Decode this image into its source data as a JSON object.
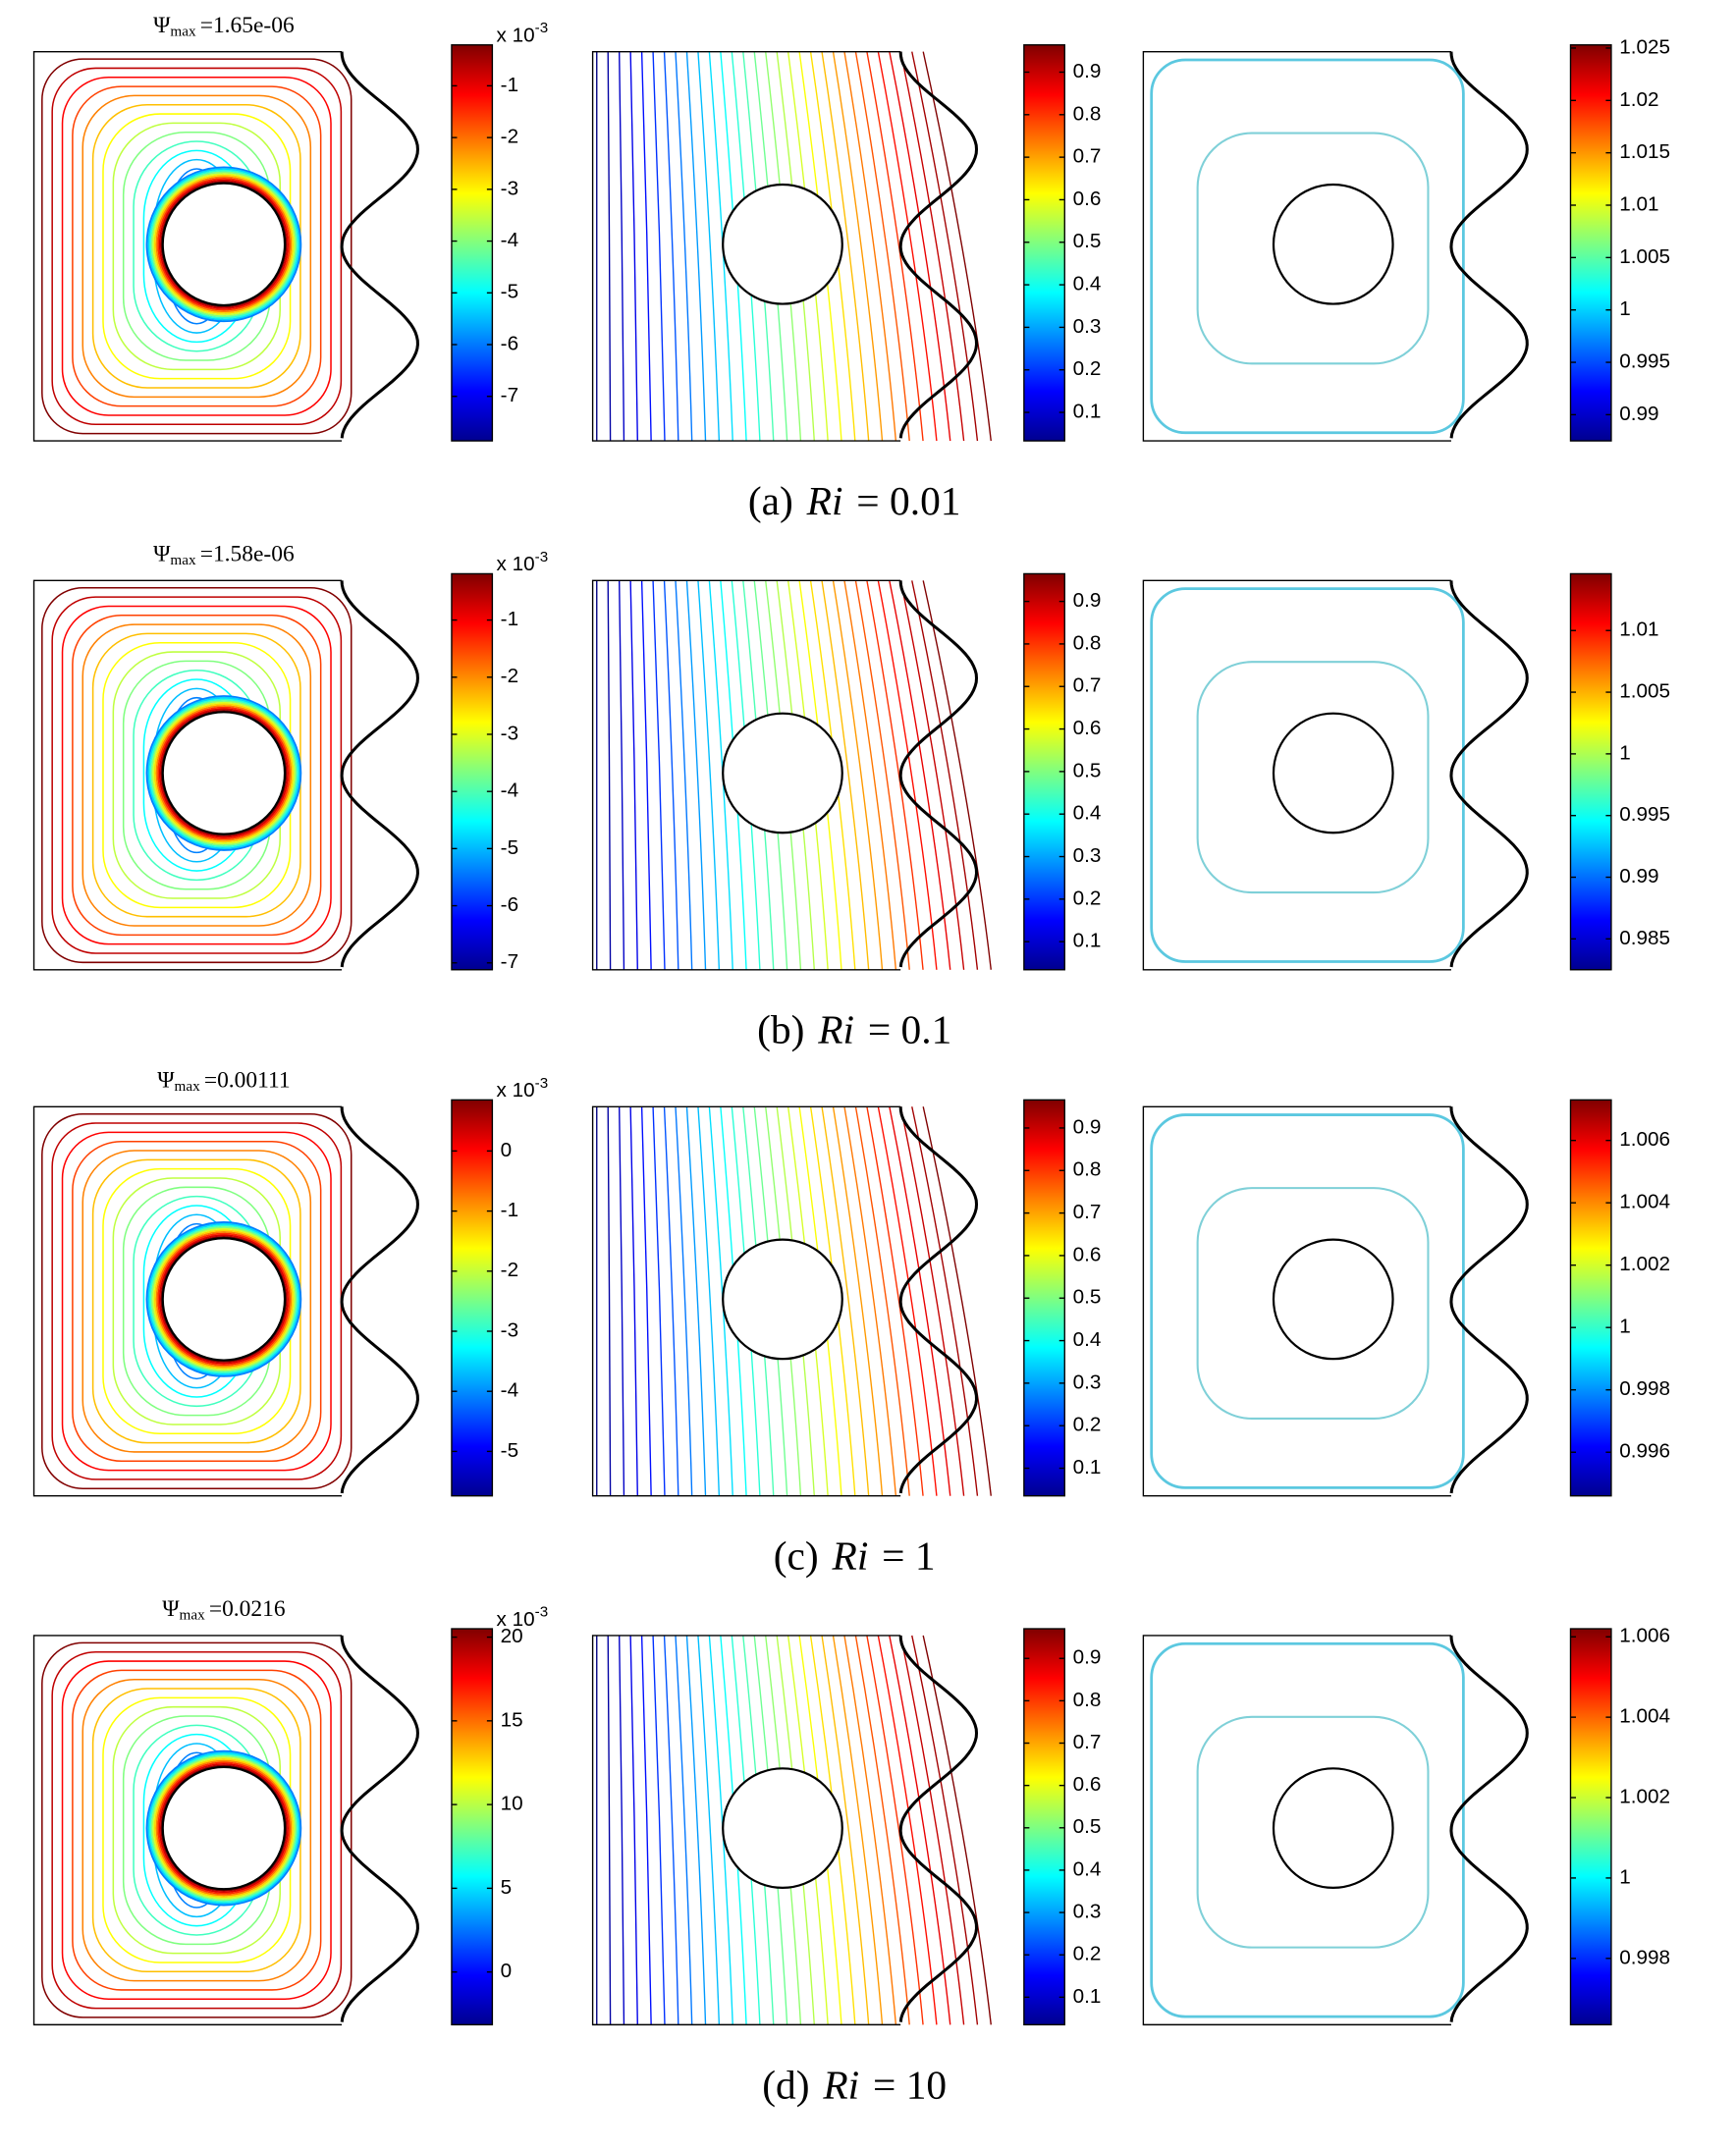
{
  "chart_data": [
    {
      "type": "contour",
      "title": {
        "symbol": "Ψ",
        "subscript": "max",
        "text": "=1.65e-06"
      },
      "multiplier": {
        "base": "x 10",
        "exponent": "-3"
      },
      "clim": [
        -7.86,
        -0.21
      ],
      "cticks": [
        -1,
        -2,
        -3,
        -4,
        -5,
        -6,
        -7
      ]
    },
    {
      "type": "contour",
      "clim": [
        0.033,
        0.964
      ],
      "cticks": [
        0.9,
        0.8,
        0.7,
        0.6,
        0.5,
        0.4,
        0.3,
        0.2,
        0.1
      ]
    },
    {
      "type": "contour",
      "clim": [
        0.9875,
        1.0253
      ],
      "cticks": [
        1.025,
        1.02,
        1.015,
        1.01,
        1.005,
        1,
        0.995,
        0.99
      ]
    },
    {
      "type": "contour",
      "title": {
        "symbol": "Ψ",
        "subscript": "max",
        "text": "=1.58e-06"
      },
      "multiplier": {
        "base": "x 10",
        "exponent": "-3"
      },
      "clim": [
        -7.12,
        -0.19
      ],
      "cticks": [
        -1,
        -2,
        -3,
        -4,
        -5,
        -6,
        -7
      ]
    },
    {
      "type": "contour",
      "clim": [
        0.034,
        0.965
      ],
      "cticks": [
        0.9,
        0.8,
        0.7,
        0.6,
        0.5,
        0.4,
        0.3,
        0.2,
        0.1
      ]
    },
    {
      "type": "contour",
      "clim": [
        0.9825,
        1.0146
      ],
      "cticks": [
        1.01,
        1.005,
        1,
        0.995,
        0.99,
        0.985
      ]
    },
    {
      "type": "contour",
      "title": {
        "symbol": "Ψ",
        "subscript": "max",
        "text": "=0.00111"
      },
      "multiplier": {
        "base": "x 10",
        "exponent": "-3"
      },
      "clim": [
        -5.74,
        0.85
      ],
      "cticks": [
        0,
        -1,
        -2,
        -3,
        -4,
        -5
      ]
    },
    {
      "type": "contour",
      "clim": [
        0.035,
        0.966
      ],
      "cticks": [
        0.9,
        0.8,
        0.7,
        0.6,
        0.5,
        0.4,
        0.3,
        0.2,
        0.1
      ]
    },
    {
      "type": "contour",
      "clim": [
        0.9946,
        1.0073
      ],
      "cticks": [
        1.006,
        1.004,
        1.002,
        1,
        0.998,
        0.996
      ]
    },
    {
      "type": "contour",
      "title": {
        "symbol": "Ψ",
        "subscript": "max",
        "text": "=0.0216"
      },
      "multiplier": {
        "base": "x 10",
        "exponent": "-3"
      },
      "clim": [
        -3.15,
        20.5
      ],
      "cticks": [
        20,
        15,
        10,
        5,
        0
      ]
    },
    {
      "type": "contour",
      "clim": [
        0.035,
        0.97
      ],
      "cticks": [
        0.9,
        0.8,
        0.7,
        0.6,
        0.5,
        0.4,
        0.3,
        0.2,
        0.1
      ]
    },
    {
      "type": "contour",
      "clim": [
        0.99635,
        1.0062
      ],
      "cticks": [
        1.006,
        1.004,
        1.002,
        1,
        0.998
      ]
    }
  ],
  "captions": [
    {
      "label": "(a)",
      "symbol": "Ri",
      "text": "= 0.01"
    },
    {
      "label": "(b)",
      "symbol": "Ri",
      "text": "= 0.1"
    },
    {
      "label": "(c)",
      "symbol": "Ri",
      "text": "= 1"
    },
    {
      "label": "(d)",
      "symbol": "Ri",
      "text": "= 10"
    }
  ]
}
